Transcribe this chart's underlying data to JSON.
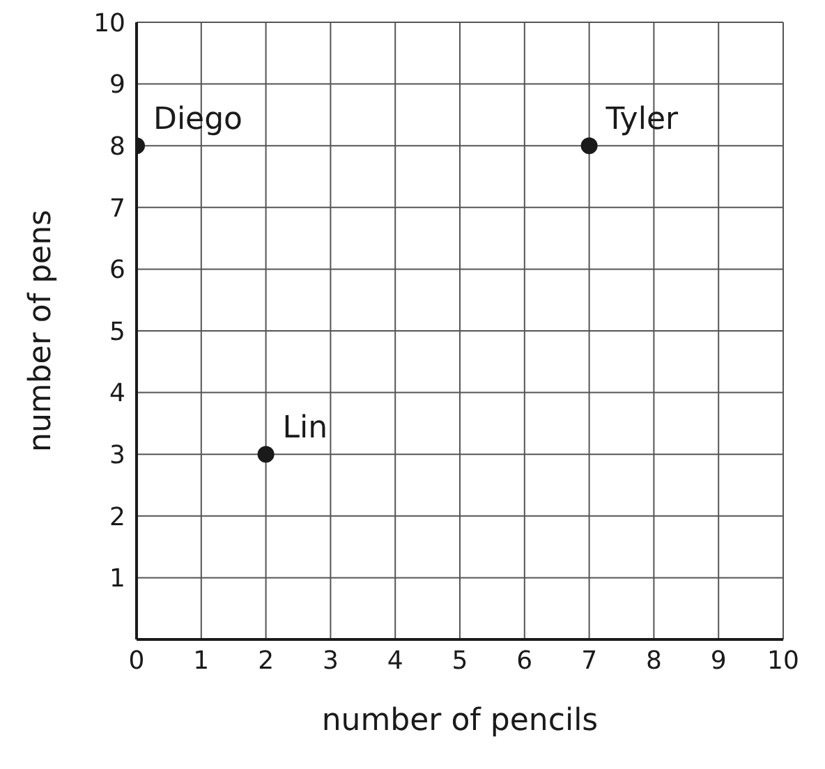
{
  "chart_data": {
    "type": "scatter",
    "xlabel": "number of pencils",
    "ylabel": "number of pens",
    "x": [
      0,
      7,
      2
    ],
    "values": [
      8,
      8,
      3
    ],
    "color": "#1a1a1a",
    "marker": "circle",
    "grid": true,
    "xlim": [
      0,
      10
    ],
    "ylim": [
      0,
      10
    ],
    "xticks": [
      0,
      1,
      2,
      3,
      4,
      5,
      6,
      7,
      8,
      9,
      10
    ],
    "yticks": [
      {
        "value": 0,
        "label": null
      },
      1,
      2,
      3,
      4,
      5,
      6,
      7,
      8,
      9,
      10
    ],
    "annotations": [
      {
        "text": "Diego",
        "x": 0,
        "y": 8
      },
      {
        "text": "Tyler",
        "x": 7,
        "y": 8
      },
      {
        "text": "Lin",
        "x": 2,
        "y": 3
      }
    ]
  }
}
